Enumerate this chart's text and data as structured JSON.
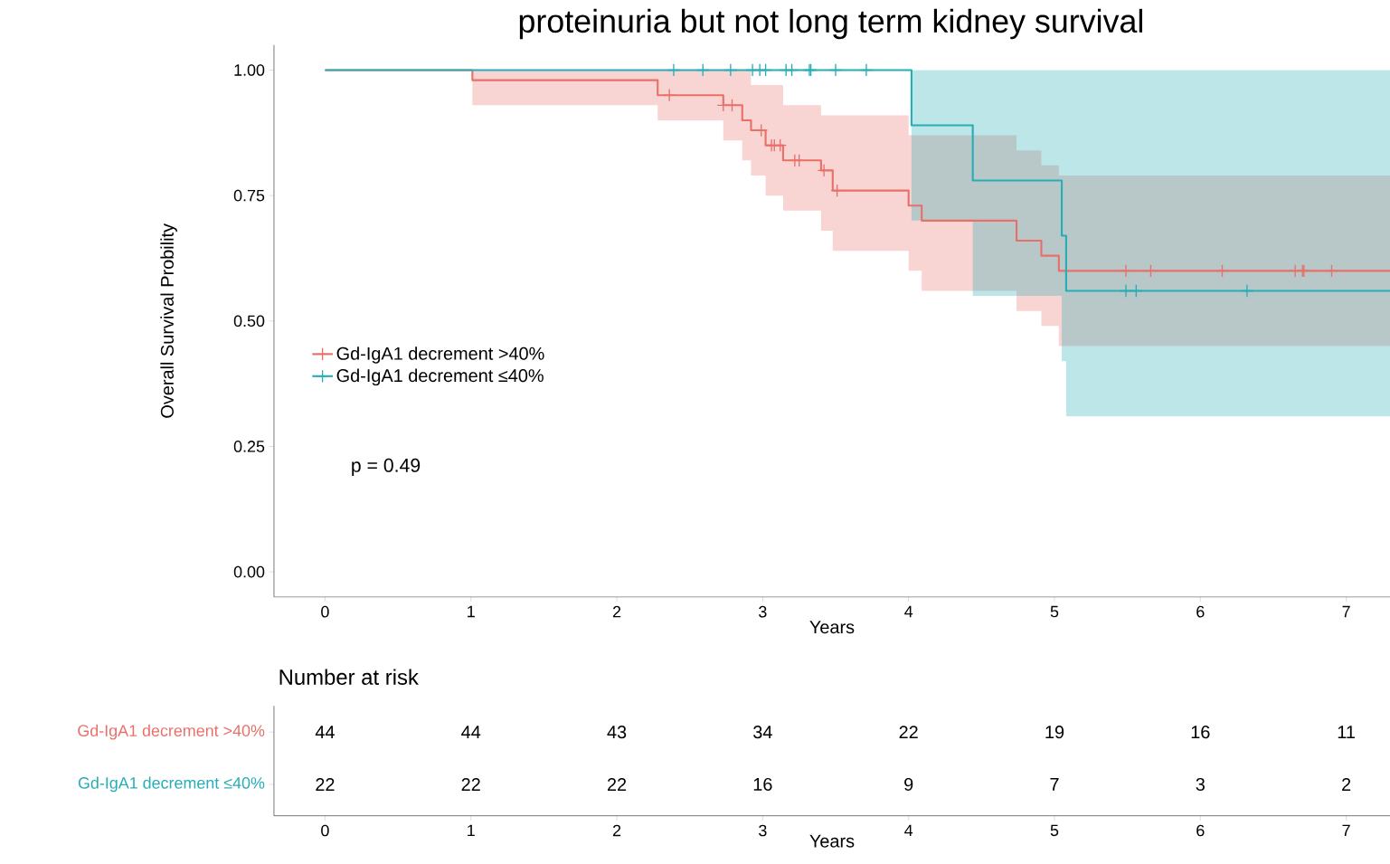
{
  "chart_data": [
    {
      "type": "step",
      "title": "proteinuria but not long term kidney survival",
      "xlabel": "Years",
      "ylabel": "Overall Survival Probility",
      "xlim": [
        -0.35,
        7.3
      ],
      "ylim": [
        -0.05,
        1.05
      ],
      "xticks": [
        0,
        1,
        2,
        3,
        4,
        5,
        6,
        7
      ],
      "yticks": [
        {
          "value": 0,
          "label": "0.00"
        },
        {
          "value": 0.25,
          "label": "0.25"
        },
        {
          "value": 0.5,
          "label": "0.50"
        },
        {
          "value": 0.75,
          "label": "0.75"
        },
        {
          "value": 1,
          "label": "1.00"
        }
      ],
      "series": [
        {
          "name": "Gd-IgA1 decrement >40%",
          "color": "#e8706a",
          "x": [
            0,
            1.01,
            2.28,
            2.73,
            2.86,
            2.92,
            3.02,
            3.14,
            3.4,
            3.48,
            4.0,
            4.09,
            4.74,
            4.91,
            5.03,
            7.3
          ],
          "values": [
            1,
            0.98,
            0.95,
            0.93,
            0.9,
            0.88,
            0.85,
            0.82,
            0.8,
            0.76,
            0.73,
            0.7,
            0.66,
            0.63,
            0.6,
            0.6
          ],
          "lower": [
            1,
            0.93,
            0.9,
            0.86,
            0.82,
            0.79,
            0.75,
            0.72,
            0.68,
            0.64,
            0.6,
            0.56,
            0.52,
            0.49,
            0.45,
            0.45
          ],
          "upper": [
            1,
            1,
            1,
            1,
            1,
            0.97,
            0.97,
            0.93,
            0.91,
            0.91,
            0.87,
            0.87,
            0.84,
            0.81,
            0.79,
            0.79
          ]
        },
        {
          "name": "Gd-IgA1 decrement ≤40%",
          "color": "#26adb5",
          "x": [
            0,
            4.02,
            4.44,
            5.05,
            5.08,
            7.3
          ],
          "values": [
            1,
            0.89,
            0.78,
            0.67,
            0.56,
            0.56
          ],
          "lower": [
            1,
            0.7,
            0.55,
            0.42,
            0.31,
            0.31
          ],
          "upper": [
            1,
            1,
            1,
            1,
            1,
            1
          ]
        },
        {
          "type": "scatter",
          "color": "#e8706a",
          "marker": "cross",
          "x": [
            2.36,
            2.73,
            2.79,
            2.99,
            3.06,
            3.08,
            3.12,
            3.22,
            3.25,
            3.42,
            3.51,
            5.49,
            5.66,
            6.15,
            6.65,
            6.7,
            6.71,
            6.9
          ],
          "values": [
            0.95,
            0.93,
            0.93,
            0.88,
            0.85,
            0.85,
            0.85,
            0.82,
            0.82,
            0.8,
            0.76,
            0.6,
            0.6,
            0.6,
            0.6,
            0.6,
            0.6,
            0.6
          ]
        },
        {
          "type": "scatter",
          "color": "#26adb5",
          "marker": "cross",
          "x": [
            2.39,
            2.59,
            2.78,
            2.93,
            2.98,
            3.02,
            3.16,
            3.2,
            3.32,
            3.33,
            3.5,
            3.71,
            5.49,
            5.56,
            6.32
          ],
          "values": [
            1,
            1,
            1,
            1,
            1,
            1,
            1,
            1,
            1,
            1,
            1,
            1,
            0.56,
            0.56,
            0.56
          ]
        }
      ],
      "legend": "left",
      "grid": false,
      "annotations": [
        "p = 0.49"
      ]
    },
    {
      "type": "heatmap",
      "title": "Number at risk",
      "xlabel": "Years",
      "categories": [
        "0",
        "1",
        "2",
        "3",
        "4",
        "5",
        "6",
        "7"
      ],
      "y_categories": [
        "Gd-IgA1 decrement >40%",
        "Gd-IgA1 decrement ≤40%"
      ],
      "cells": [
        [
          44,
          44,
          43,
          34,
          22,
          19,
          16,
          11
        ],
        [
          22,
          22,
          22,
          16,
          9,
          7,
          3,
          2
        ]
      ],
      "data_labels": true
    }
  ]
}
